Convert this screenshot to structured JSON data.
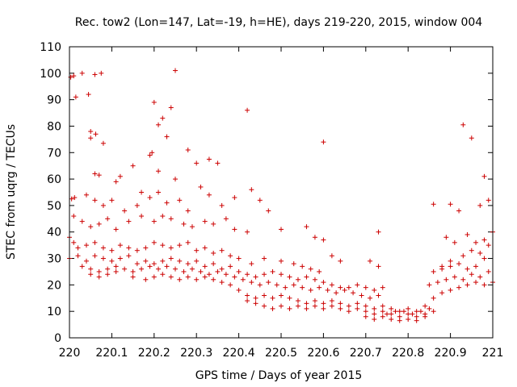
{
  "chart_data": {
    "type": "scatter",
    "title": "Rec. tow2 (Lon=147, Lat=-19, h=HE), days 219-220, 2015, window 004",
    "xlabel": "GPS time / Days of year 2015",
    "ylabel": "STEC from uqrg / TECUs",
    "xlim": [
      220,
      221
    ],
    "ylim": [
      0,
      110
    ],
    "xticks": [
      220,
      220.1,
      220.2,
      220.3,
      220.4,
      220.5,
      220.6,
      220.7,
      220.8,
      220.9,
      221
    ],
    "xtick_labels": [
      "220",
      "220.1",
      "220.2",
      "220.3",
      "220.4",
      "220.5",
      "220.6",
      "220.7",
      "220.8",
      "220.9",
      "221"
    ],
    "yticks": [
      0,
      10,
      20,
      30,
      40,
      50,
      60,
      70,
      80,
      90,
      100,
      110
    ],
    "ytick_labels": [
      "0",
      "10",
      "20",
      "30",
      "40",
      "50",
      "60",
      "70",
      "80",
      "90",
      "100",
      "110"
    ],
    "grid": false,
    "marker": "+",
    "color": "#cc0000",
    "points": [
      [
        220.003,
        98.5
      ],
      [
        220.01,
        99
      ],
      [
        220.03,
        100
      ],
      [
        220.045,
        92
      ],
      [
        220.06,
        99.5
      ],
      [
        220.075,
        100
      ],
      [
        220.25,
        101
      ],
      [
        220.015,
        91
      ],
      [
        220.05,
        78
      ],
      [
        220.062,
        77
      ],
      [
        220.05,
        75.5
      ],
      [
        220.2,
        89
      ],
      [
        220.21,
        80.5
      ],
      [
        220.22,
        83
      ],
      [
        220.24,
        87
      ],
      [
        220.23,
        76
      ],
      [
        220.42,
        86
      ],
      [
        220.6,
        74
      ],
      [
        220.93,
        80.5
      ],
      [
        220.95,
        75.5
      ],
      [
        220.08,
        73.5
      ],
      [
        220.195,
        70
      ],
      [
        220.19,
        69
      ],
      [
        220.28,
        71
      ],
      [
        220.3,
        66
      ],
      [
        220.33,
        67.5
      ],
      [
        220.35,
        66
      ],
      [
        220.06,
        62
      ],
      [
        220.07,
        61.5
      ],
      [
        220.12,
        61
      ],
      [
        220.15,
        65
      ],
      [
        220.21,
        63
      ],
      [
        220.25,
        60
      ],
      [
        220.98,
        61
      ],
      [
        220.17,
        55
      ],
      [
        220.11,
        59
      ],
      [
        220.005,
        52.5
      ],
      [
        220.012,
        53
      ],
      [
        220.04,
        54
      ],
      [
        220.06,
        52
      ],
      [
        220.08,
        50
      ],
      [
        220.1,
        52
      ],
      [
        220.13,
        48
      ],
      [
        220.16,
        50
      ],
      [
        220.19,
        53
      ],
      [
        220.21,
        55
      ],
      [
        220.23,
        51
      ],
      [
        220.26,
        52
      ],
      [
        220.28,
        48
      ],
      [
        220.31,
        57
      ],
      [
        220.33,
        54
      ],
      [
        220.36,
        50
      ],
      [
        220.39,
        53
      ],
      [
        220.43,
        56
      ],
      [
        220.45,
        52
      ],
      [
        220.47,
        48
      ],
      [
        220.86,
        50.5
      ],
      [
        220.9,
        50.5
      ],
      [
        220.92,
        48
      ],
      [
        220.97,
        50
      ],
      [
        220.99,
        52
      ],
      [
        220.01,
        46
      ],
      [
        220.03,
        44
      ],
      [
        220.05,
        42
      ],
      [
        220.07,
        43
      ],
      [
        220.09,
        45
      ],
      [
        220.11,
        41
      ],
      [
        220.14,
        44
      ],
      [
        220.17,
        46
      ],
      [
        220.2,
        44
      ],
      [
        220.22,
        46
      ],
      [
        220.24,
        45
      ],
      [
        220.27,
        43
      ],
      [
        220.29,
        42
      ],
      [
        220.32,
        44
      ],
      [
        220.34,
        43
      ],
      [
        220.37,
        45
      ],
      [
        220.39,
        41
      ],
      [
        220.42,
        40
      ],
      [
        220.5,
        41
      ],
      [
        220.56,
        42
      ],
      [
        220.58,
        38
      ],
      [
        220.6,
        37
      ],
      [
        220.73,
        40
      ],
      [
        220.89,
        38
      ],
      [
        220.91,
        36
      ],
      [
        220.94,
        39
      ],
      [
        220.96,
        36
      ],
      [
        220.98,
        37
      ],
      [
        221.0,
        40
      ],
      [
        220.0,
        38
      ],
      [
        220.01,
        36
      ],
      [
        220.02,
        34
      ],
      [
        220.04,
        35
      ],
      [
        220.06,
        36
      ],
      [
        220.08,
        34
      ],
      [
        220.1,
        33
      ],
      [
        220.12,
        35
      ],
      [
        220.14,
        34
      ],
      [
        220.16,
        33
      ],
      [
        220.18,
        34
      ],
      [
        220.2,
        36
      ],
      [
        220.22,
        35
      ],
      [
        220.24,
        34
      ],
      [
        220.26,
        35
      ],
      [
        220.28,
        36
      ],
      [
        220.3,
        33
      ],
      [
        220.32,
        34
      ],
      [
        220.34,
        32
      ],
      [
        220.36,
        33
      ],
      [
        220.38,
        31
      ],
      [
        220.4,
        30
      ],
      [
        220.43,
        28
      ],
      [
        220.46,
        30
      ],
      [
        220.5,
        29
      ],
      [
        220.53,
        28
      ],
      [
        220.55,
        27
      ],
      [
        220.57,
        26
      ],
      [
        220.59,
        25
      ],
      [
        220.62,
        31
      ],
      [
        220.64,
        29
      ],
      [
        220.71,
        29
      ],
      [
        220.73,
        27
      ],
      [
        220.88,
        27
      ],
      [
        220.9,
        29
      ],
      [
        220.93,
        31
      ],
      [
        220.95,
        33
      ],
      [
        220.97,
        32
      ],
      [
        220.99,
        35
      ],
      [
        220.0,
        30
      ],
      [
        220.02,
        31
      ],
      [
        220.04,
        29
      ],
      [
        220.06,
        31
      ],
      [
        220.08,
        30
      ],
      [
        220.1,
        29
      ],
      [
        220.12,
        30
      ],
      [
        220.14,
        31
      ],
      [
        220.16,
        28
      ],
      [
        220.18,
        29
      ],
      [
        220.2,
        28
      ],
      [
        220.22,
        29
      ],
      [
        220.24,
        30
      ],
      [
        220.26,
        29
      ],
      [
        220.28,
        28
      ],
      [
        220.3,
        29
      ],
      [
        220.32,
        27
      ],
      [
        220.34,
        28
      ],
      [
        220.36,
        26
      ],
      [
        220.38,
        27
      ],
      [
        220.4,
        25
      ],
      [
        220.42,
        24
      ],
      [
        220.44,
        23
      ],
      [
        220.46,
        24
      ],
      [
        220.48,
        25
      ],
      [
        220.5,
        24
      ],
      [
        220.52,
        23
      ],
      [
        220.54,
        22
      ],
      [
        220.56,
        23
      ],
      [
        220.58,
        22
      ],
      [
        220.6,
        21
      ],
      [
        220.62,
        20
      ],
      [
        220.64,
        19
      ],
      [
        220.66,
        19
      ],
      [
        220.68,
        20
      ],
      [
        220.7,
        19
      ],
      [
        220.72,
        18
      ],
      [
        220.74,
        19
      ],
      [
        220.86,
        25
      ],
      [
        220.88,
        26
      ],
      [
        220.9,
        27
      ],
      [
        220.92,
        28
      ],
      [
        220.94,
        26
      ],
      [
        220.96,
        27
      ],
      [
        220.98,
        30
      ],
      [
        220.03,
        27
      ],
      [
        220.05,
        26
      ],
      [
        220.07,
        25
      ],
      [
        220.09,
        26
      ],
      [
        220.11,
        27
      ],
      [
        220.13,
        26
      ],
      [
        220.15,
        25
      ],
      [
        220.17,
        26
      ],
      [
        220.19,
        27
      ],
      [
        220.21,
        26
      ],
      [
        220.23,
        27
      ],
      [
        220.25,
        26
      ],
      [
        220.27,
        25
      ],
      [
        220.29,
        26
      ],
      [
        220.31,
        25
      ],
      [
        220.33,
        24
      ],
      [
        220.35,
        25
      ],
      [
        220.37,
        24
      ],
      [
        220.39,
        23
      ],
      [
        220.41,
        22
      ],
      [
        220.43,
        21
      ],
      [
        220.45,
        20
      ],
      [
        220.47,
        21
      ],
      [
        220.49,
        20
      ],
      [
        220.51,
        19
      ],
      [
        220.53,
        20
      ],
      [
        220.55,
        19
      ],
      [
        220.57,
        18
      ],
      [
        220.59,
        19
      ],
      [
        220.61,
        18
      ],
      [
        220.63,
        17
      ],
      [
        220.65,
        18
      ],
      [
        220.67,
        17
      ],
      [
        220.69,
        16
      ],
      [
        220.71,
        15
      ],
      [
        220.73,
        16
      ],
      [
        220.85,
        20
      ],
      [
        220.87,
        21
      ],
      [
        220.89,
        22
      ],
      [
        220.91,
        23
      ],
      [
        220.93,
        22
      ],
      [
        220.95,
        24
      ],
      [
        220.97,
        23
      ],
      [
        220.99,
        25
      ],
      [
        220.05,
        24
      ],
      [
        220.07,
        23
      ],
      [
        220.09,
        24
      ],
      [
        220.11,
        25
      ],
      [
        220.15,
        23
      ],
      [
        220.18,
        22
      ],
      [
        220.2,
        23
      ],
      [
        220.22,
        24
      ],
      [
        220.24,
        23
      ],
      [
        220.26,
        22
      ],
      [
        220.28,
        23
      ],
      [
        220.3,
        22
      ],
      [
        220.32,
        23
      ],
      [
        220.34,
        22
      ],
      [
        220.36,
        21
      ],
      [
        220.38,
        20
      ],
      [
        220.4,
        18
      ],
      [
        220.42,
        16
      ],
      [
        220.44,
        15
      ],
      [
        220.46,
        16
      ],
      [
        220.48,
        15
      ],
      [
        220.5,
        16
      ],
      [
        220.52,
        15
      ],
      [
        220.54,
        14
      ],
      [
        220.56,
        13
      ],
      [
        220.58,
        14
      ],
      [
        220.6,
        13
      ],
      [
        220.62,
        14
      ],
      [
        220.64,
        13
      ],
      [
        220.66,
        12
      ],
      [
        220.68,
        13
      ],
      [
        220.7,
        12
      ],
      [
        220.72,
        11
      ],
      [
        220.74,
        12
      ],
      [
        220.76,
        11
      ],
      [
        220.78,
        10
      ],
      [
        220.8,
        11
      ],
      [
        220.82,
        10
      ],
      [
        220.84,
        12
      ],
      [
        220.86,
        15
      ],
      [
        220.88,
        17
      ],
      [
        220.9,
        18
      ],
      [
        220.92,
        19
      ],
      [
        220.94,
        20
      ],
      [
        220.96,
        21
      ],
      [
        220.98,
        20
      ],
      [
        221.0,
        21
      ],
      [
        220.42,
        14
      ],
      [
        220.44,
        13
      ],
      [
        220.46,
        12
      ],
      [
        220.48,
        11
      ],
      [
        220.5,
        12
      ],
      [
        220.52,
        11
      ],
      [
        220.54,
        12
      ],
      [
        220.56,
        11
      ],
      [
        220.58,
        12
      ],
      [
        220.6,
        11
      ],
      [
        220.62,
        12
      ],
      [
        220.64,
        11
      ],
      [
        220.66,
        10
      ],
      [
        220.68,
        11
      ],
      [
        220.7,
        10
      ],
      [
        220.72,
        9
      ],
      [
        220.74,
        10
      ],
      [
        220.76,
        9
      ],
      [
        220.78,
        8
      ],
      [
        220.8,
        9
      ],
      [
        220.82,
        8
      ],
      [
        220.84,
        9
      ],
      [
        220.86,
        10
      ],
      [
        220.7,
        8
      ],
      [
        220.72,
        7
      ],
      [
        220.74,
        8
      ],
      [
        220.76,
        7
      ],
      [
        220.78,
        6.5
      ],
      [
        220.8,
        7
      ],
      [
        220.82,
        6.5
      ],
      [
        220.84,
        8
      ],
      [
        220.75,
        9
      ],
      [
        220.77,
        10
      ],
      [
        220.79,
        10
      ],
      [
        220.81,
        9
      ],
      [
        220.83,
        10
      ],
      [
        220.85,
        11
      ]
    ]
  }
}
